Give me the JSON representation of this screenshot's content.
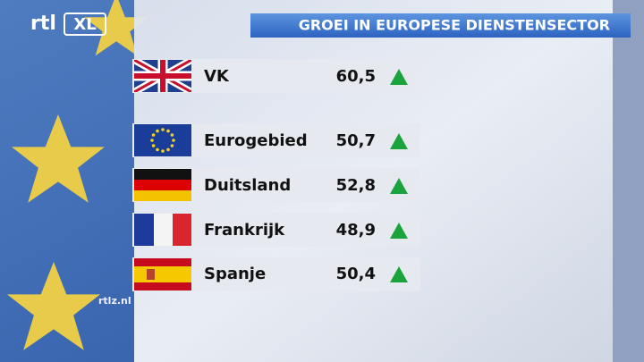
{
  "logo": {
    "left": "rtl",
    "right": "XL"
  },
  "header": {
    "title": "GROEI IN EUROPESE DIENSTENSECTOR"
  },
  "rows": [
    {
      "label": "VK",
      "value": "60,5"
    },
    {
      "label": "Eurogebied",
      "value": "50,7"
    },
    {
      "label": "Duitsland",
      "value": "52,8"
    },
    {
      "label": "Frankrijk",
      "value": "48,9"
    },
    {
      "label": "Spanje",
      "value": "50,4"
    }
  ],
  "footer": "rtlz.nl"
}
